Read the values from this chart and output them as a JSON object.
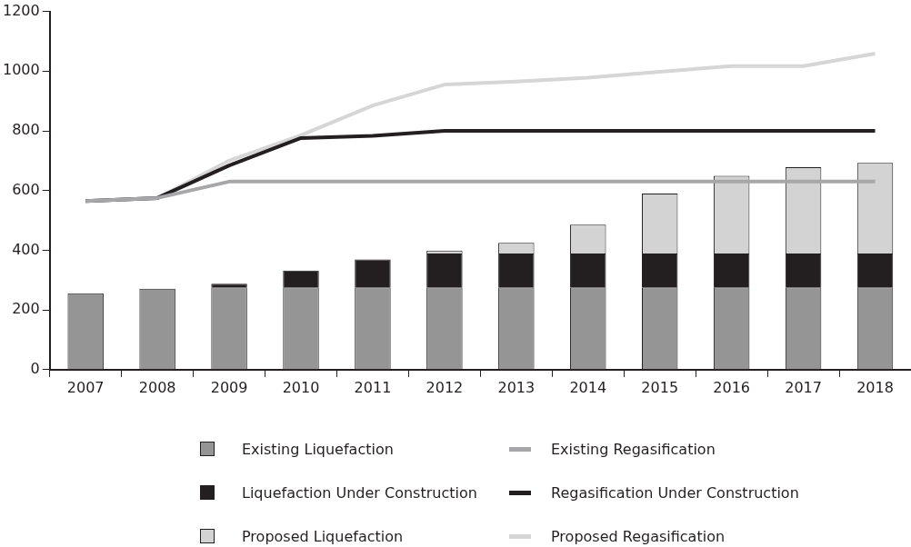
{
  "chart_data": {
    "type": "bar",
    "stacked": true,
    "categories": [
      "2007",
      "2008",
      "2009",
      "2010",
      "2011",
      "2012",
      "2013",
      "2014",
      "2015",
      "2016",
      "2017",
      "2018"
    ],
    "series": [
      {
        "name": "Existing Liquefaction",
        "color": "#959595",
        "values": [
          256,
          271,
          276,
          276,
          276,
          276,
          276,
          276,
          276,
          276,
          276,
          276
        ]
      },
      {
        "name": "Liquefaction Under Construction",
        "color": "#231f20",
        "values": [
          0,
          0,
          12,
          56,
          93,
          113,
          113,
          113,
          113,
          113,
          113,
          113
        ]
      },
      {
        "name": "Proposed Liquefaction",
        "color": "#d3d3d4",
        "values": [
          0,
          0,
          0,
          0,
          0,
          10,
          36,
          97,
          201,
          260,
          289,
          304
        ]
      },
      {
        "name": "Existing Regasification",
        "type": "line",
        "color": "#a7a7a9",
        "values": [
          565,
          575,
          630,
          630,
          630,
          630,
          630,
          630,
          630,
          630,
          630,
          630
        ]
      },
      {
        "name": "Regasification Under Construction",
        "type": "line",
        "color": "#231f20",
        "values": [
          565,
          575,
          684,
          776,
          783,
          800,
          800,
          800,
          800,
          800,
          800,
          800
        ]
      },
      {
        "name": "Proposed Regasification",
        "type": "line",
        "color": "#d6d6d7",
        "values": [
          565,
          575,
          700,
          785,
          885,
          955,
          965,
          978,
          998,
          1017,
          1017,
          1059
        ]
      }
    ],
    "ylim": [
      0,
      1200
    ],
    "yticks": [
      0,
      200,
      400,
      600,
      800,
      1000,
      1200
    ],
    "grid": false,
    "legend": "bottom",
    "marker": "none",
    "line_style": "solid"
  }
}
